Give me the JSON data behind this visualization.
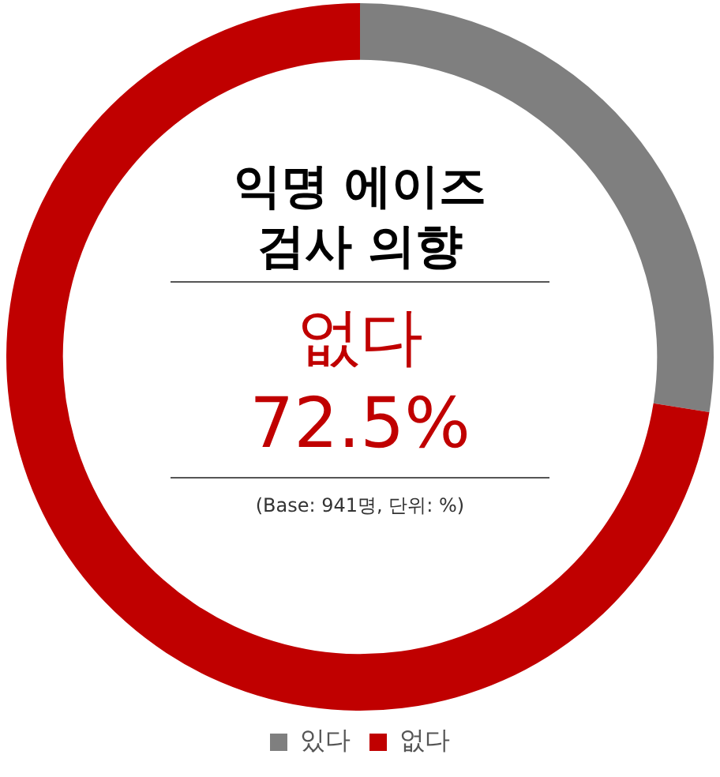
{
  "chart_data": {
    "type": "donut",
    "title": "익명 에이즈\n검사 의향",
    "categories": [
      "있다",
      "없다"
    ],
    "values": [
      27.5,
      72.5
    ],
    "colors": [
      "#7f7f7f",
      "#c00000"
    ],
    "annotations": [
      "없다",
      "72.5%",
      "(Base: 941명, 단위: %)"
    ],
    "legend": "bottom"
  }
}
